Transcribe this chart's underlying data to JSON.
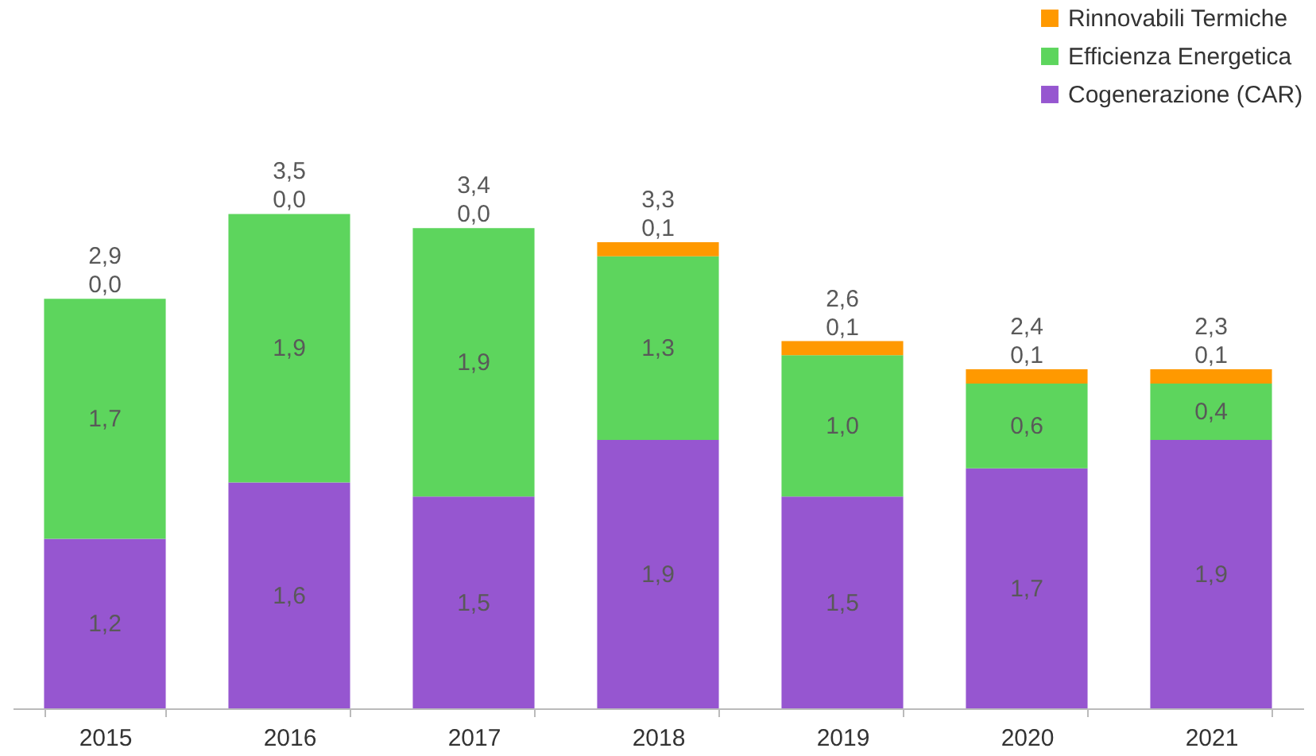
{
  "chart_data": {
    "type": "bar",
    "stacked": true,
    "categories": [
      "2015",
      "2016",
      "2017",
      "2018",
      "2019",
      "2020",
      "2021"
    ],
    "series": [
      {
        "name": "Cogenerazione (CAR)",
        "color": "#9656d0",
        "values": [
          1.2,
          1.6,
          1.5,
          1.9,
          1.5,
          1.7,
          1.9
        ],
        "value_labels": [
          "1,2",
          "1,6",
          "1,5",
          "1,9",
          "1,5",
          "1,7",
          "1,9"
        ]
      },
      {
        "name": "Efficienza Energetica",
        "color": "#5dd55d",
        "values": [
          1.7,
          1.9,
          1.9,
          1.3,
          1.0,
          0.6,
          0.4
        ],
        "value_labels": [
          "1,7",
          "1,9",
          "1,9",
          "1,3",
          "1,0",
          "0,6",
          "0,4"
        ]
      },
      {
        "name": "Rinnovabili Termiche",
        "color": "#ff9900",
        "values": [
          0.0,
          0.0,
          0.0,
          0.1,
          0.1,
          0.1,
          0.1
        ],
        "value_labels": [
          "0,0",
          "0,0",
          "0,0",
          "0,1",
          "0,1",
          "0,1",
          "0,1"
        ]
      }
    ],
    "totals": [
      "2,9",
      "3,5",
      "3,4",
      "3,3",
      "2,6",
      "2,4",
      "2,3"
    ],
    "legend": "top right",
    "tick_labels": "x",
    "grid": false
  }
}
